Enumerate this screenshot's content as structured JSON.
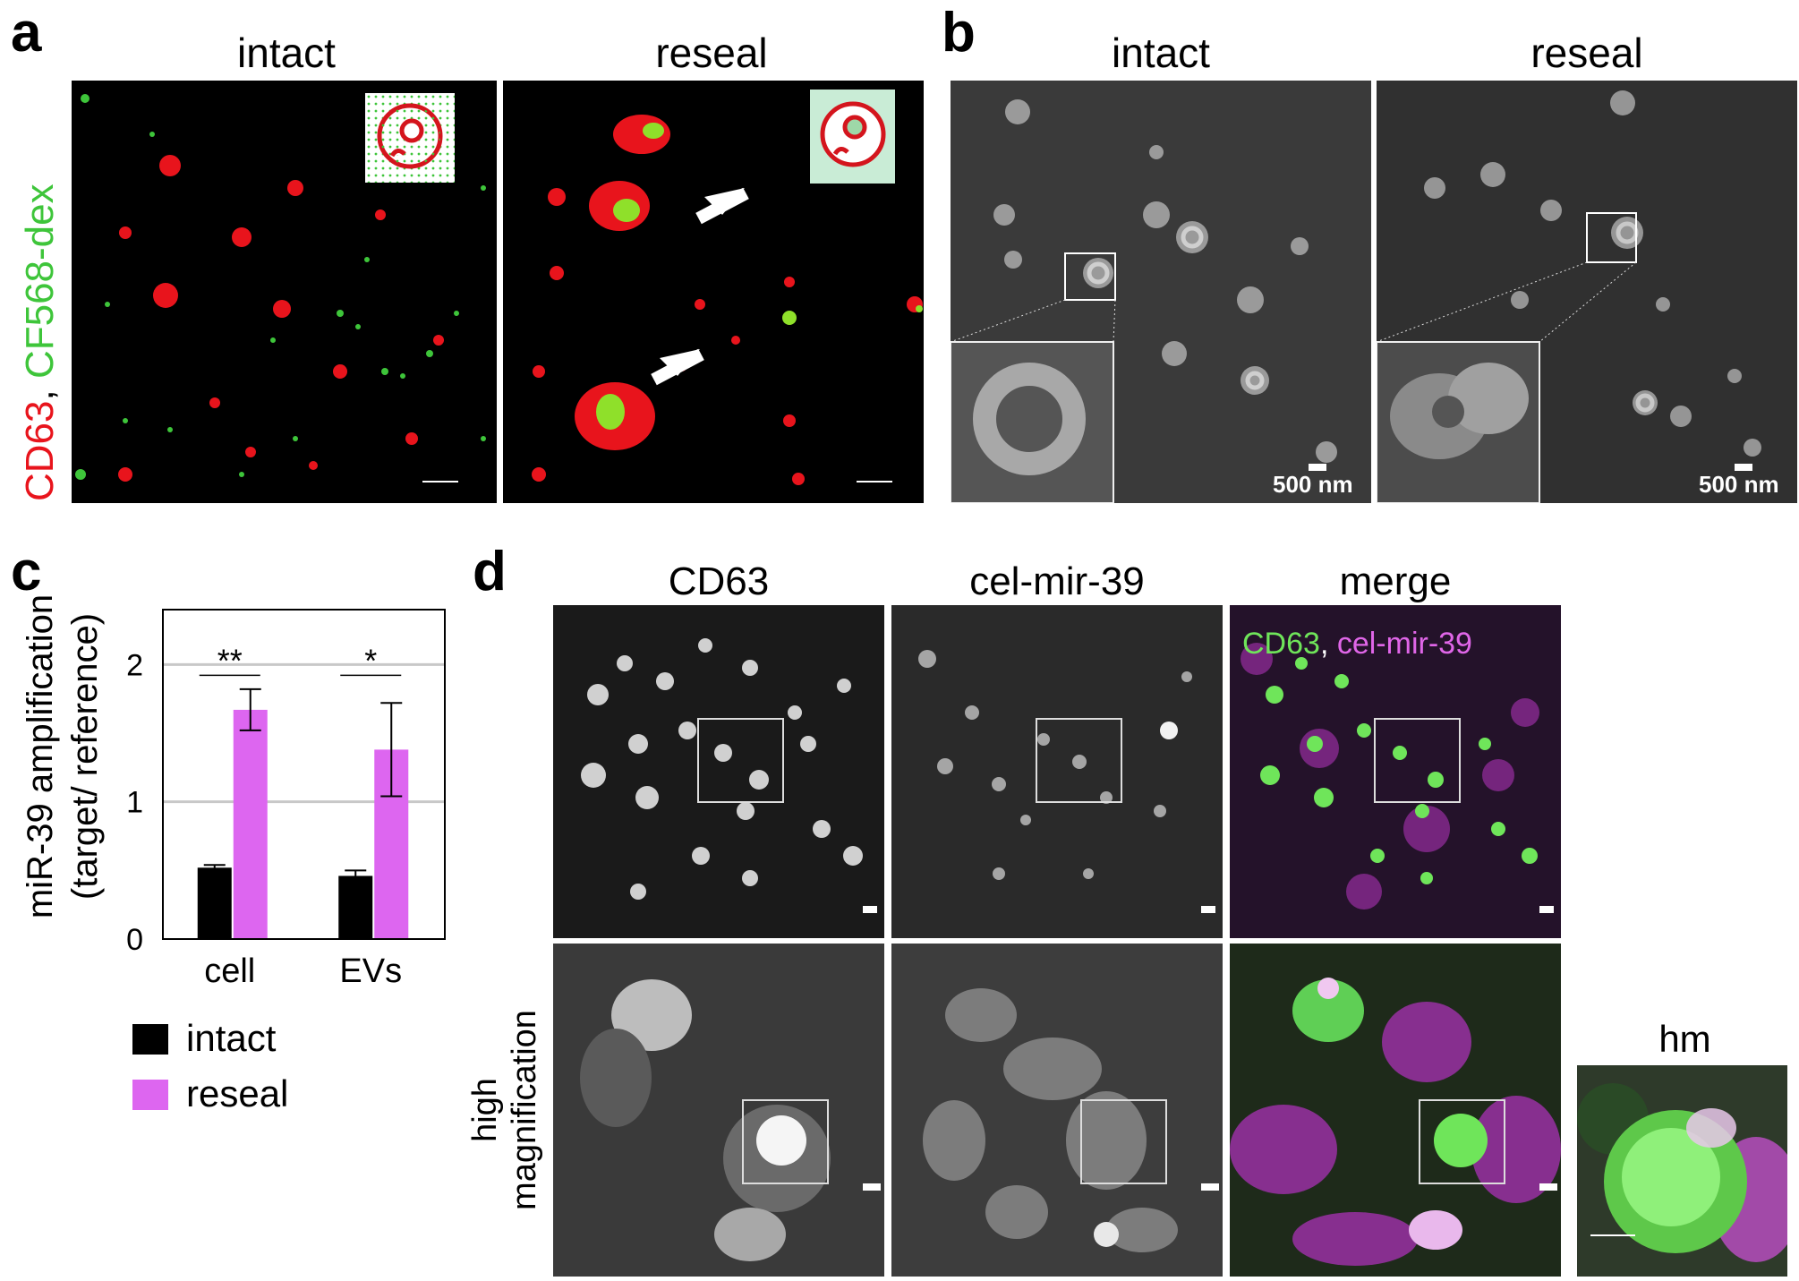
{
  "panel_a": {
    "label": "a",
    "titles": [
      "intact",
      "reseal"
    ],
    "side_label_part1": "CD63",
    "side_label_sep": ", ",
    "side_label_part2": "CF568-dex",
    "colors": {
      "red": "#e8141c",
      "green": "#3ec53a"
    }
  },
  "panel_b": {
    "label": "b",
    "titles": [
      "intact",
      "reseal"
    ],
    "scalebar_text": "500 nm"
  },
  "panel_c": {
    "label": "c",
    "ylabel_line1": "miR-39 amplification",
    "ylabel_line2": "(target/ reference)",
    "significance": [
      "**",
      "*"
    ],
    "legend": [
      "intact",
      "reseal"
    ],
    "chart_data": {
      "type": "bar",
      "categories": [
        "cell",
        "EVs"
      ],
      "series": [
        {
          "name": "intact",
          "values": [
            0.52,
            0.46
          ],
          "errors": [
            0.02,
            0.04
          ],
          "color": "#000000"
        },
        {
          "name": "reseal",
          "values": [
            1.67,
            1.38
          ],
          "errors": [
            0.15,
            0.34
          ],
          "color": "#dd66f0"
        }
      ],
      "yticks": [
        "0",
        "1",
        "2"
      ],
      "ylim": [
        0,
        2.4
      ],
      "grid": true,
      "legend_position": "bottom"
    }
  },
  "panel_d": {
    "label": "d",
    "titles": [
      "CD63",
      "cel-mir-39",
      "merge"
    ],
    "merge_label_part1": "CD63",
    "merge_label_sep": ", ",
    "merge_label_part2": "cel-mir-39",
    "row_label_line1": "high",
    "row_label_line2": "magnification",
    "hm_title": "hm",
    "colors": {
      "green": "#6fe55a",
      "magenta": "#e066e8"
    }
  }
}
